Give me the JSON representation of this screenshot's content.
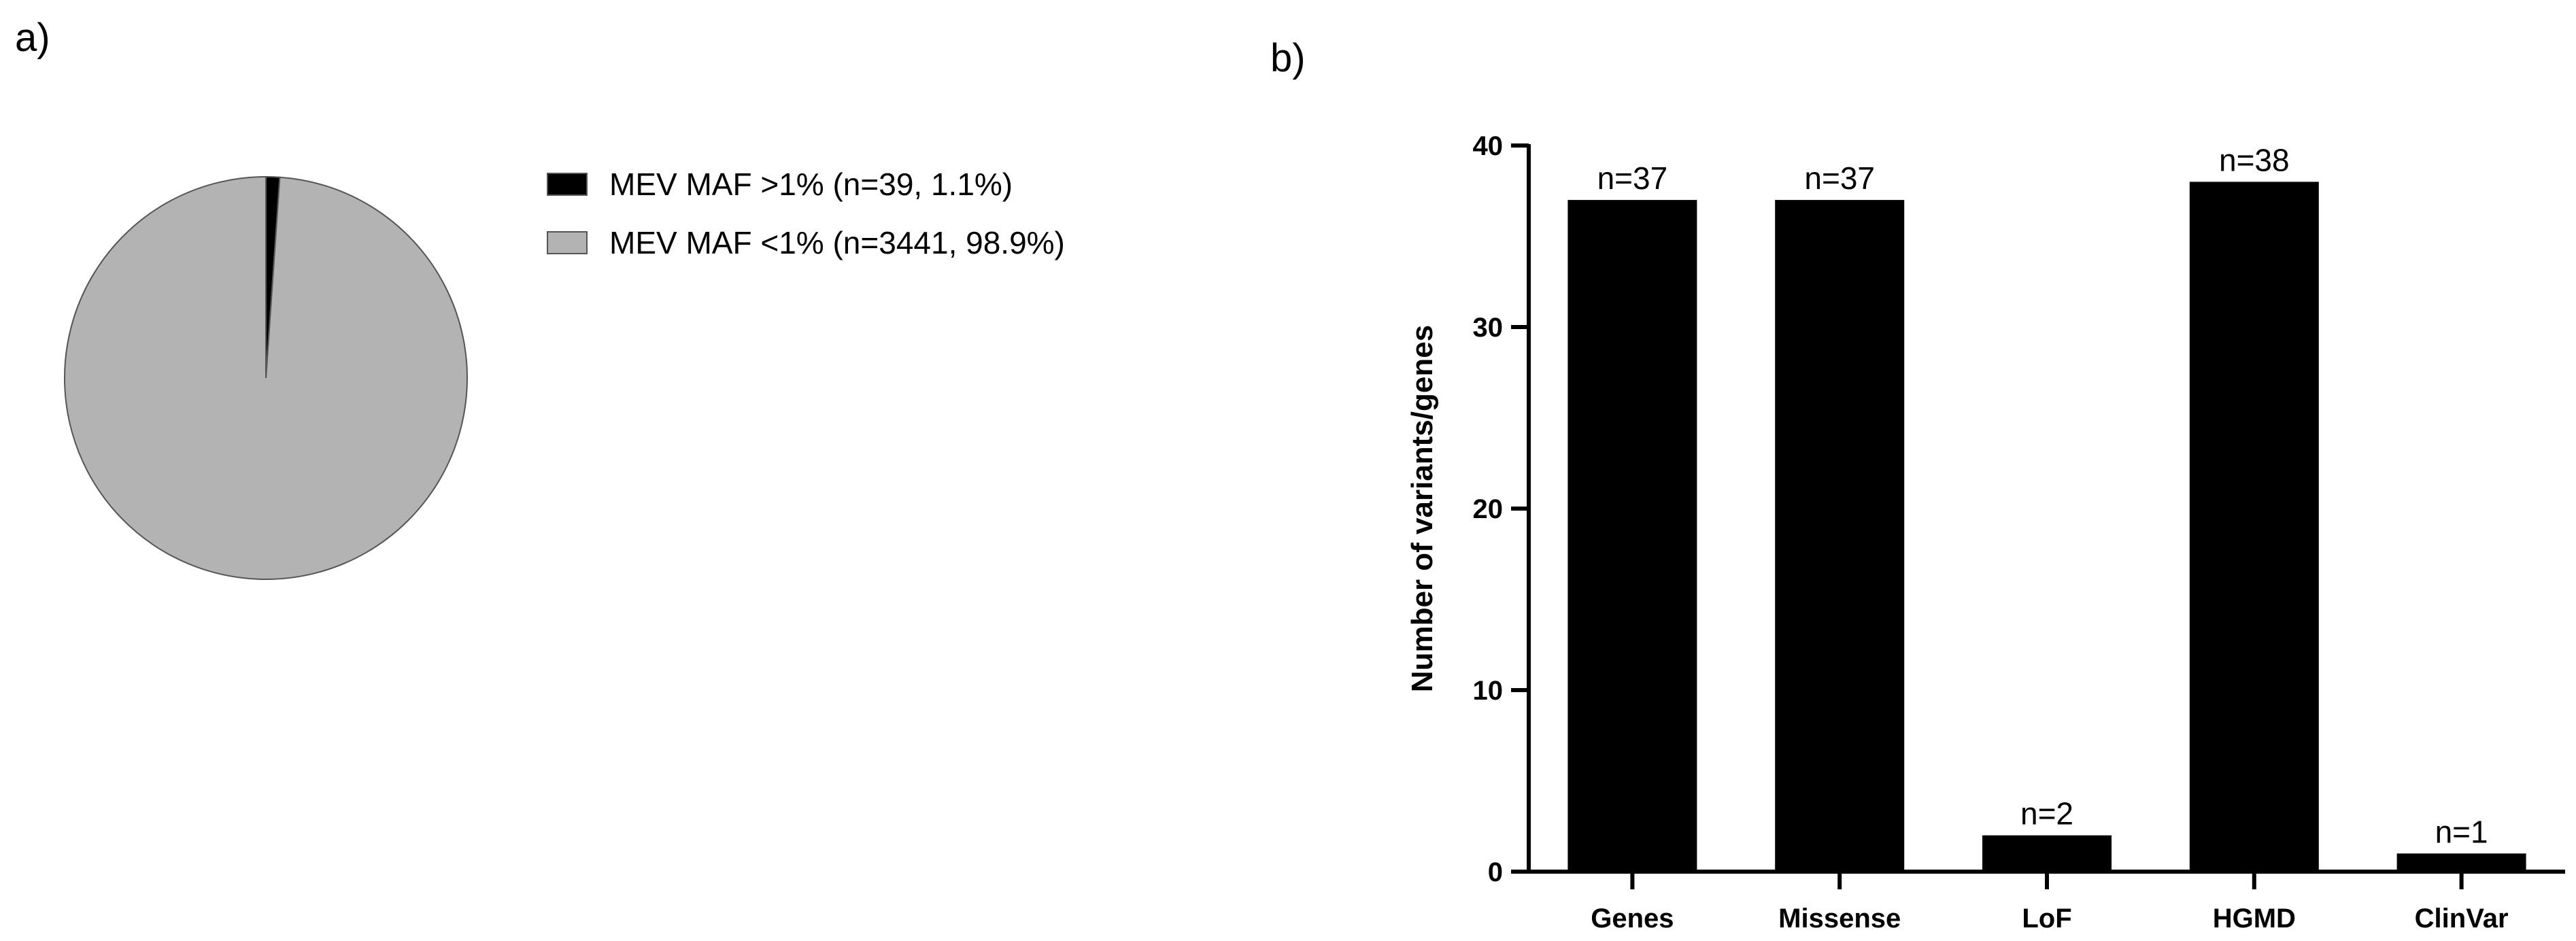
{
  "panels": {
    "a_label": "a)",
    "b_label": "b)"
  },
  "chart_data": [
    {
      "type": "pie",
      "title": "",
      "slices": [
        {
          "label": "MEV MAF >1% (n=39, 1.1%)",
          "value": 1.1,
          "color": "#000000"
        },
        {
          "label": "MEV MAF <1% (n=3441, 98.9%)",
          "value": 98.9,
          "color": "#b3b3b3"
        }
      ],
      "legend_position": "right"
    },
    {
      "type": "bar",
      "title": "",
      "categories": [
        "Genes",
        "Missense",
        "LoF",
        "HGMD",
        "ClinVar"
      ],
      "values": [
        37,
        37,
        2,
        38,
        1
      ],
      "data_labels": [
        "n=37",
        "n=37",
        "n=2",
        "n=38",
        "n=1"
      ],
      "xlabel": "",
      "ylabel": "Number of variants/genes",
      "ylim": [
        0,
        40
      ],
      "yticks": [
        0,
        10,
        20,
        30,
        40
      ],
      "bar_color": "#000000",
      "grid": false
    }
  ]
}
